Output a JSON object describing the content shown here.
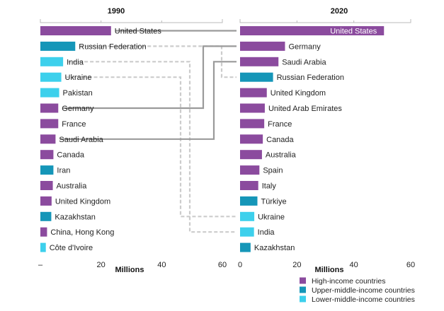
{
  "colors": {
    "High-income countries": "#8b4b9e",
    "Upper-middle-income countries": "#1596b8",
    "Lower-middle-income countries": "#3dd0ec",
    "line_solid": "#9a9a9a",
    "line_dashed": "#cccccc",
    "axis": "#bbbbbb",
    "inside_label": "#ffffff"
  },
  "chart_data": [
    {
      "type": "bar",
      "orientation": "horizontal",
      "title": "1990",
      "xlabel": "Millions",
      "xlim": [
        0,
        60
      ],
      "xticks": [
        "20",
        "40",
        "60"
      ],
      "xaxis_reversed": false,
      "categories": [
        "United States",
        "Russian Federation",
        "India",
        "Ukraine",
        "Pakistan",
        "Germany",
        "France",
        "Saudi Arabia",
        "Canada",
        "Iran",
        "Australia",
        "United Kingdom",
        "Kazakhstan",
        "China, Hong Kong",
        "Côte d'Ivoire"
      ],
      "values": [
        23.3,
        11.5,
        7.5,
        6.9,
        6.2,
        5.9,
        5.9,
        5.0,
        4.3,
        4.3,
        4.1,
        3.7,
        3.6,
        2.2,
        1.8
      ],
      "groups": [
        "High-income countries",
        "Upper-middle-income countries",
        "Lower-middle-income countries",
        "Lower-middle-income countries",
        "Lower-middle-income countries",
        "High-income countries",
        "High-income countries",
        "High-income countries",
        "High-income countries",
        "Upper-middle-income countries",
        "High-income countries",
        "High-income countries",
        "Upper-middle-income countries",
        "High-income countries",
        "Lower-middle-income countries"
      ]
    },
    {
      "type": "bar",
      "orientation": "horizontal",
      "title": "2020",
      "xlabel": "Millions",
      "xlim": [
        0,
        60
      ],
      "xticks": [
        "0",
        "20",
        "40",
        "60"
      ],
      "categories": [
        "United States",
        "Germany",
        "Saudi Arabia",
        "Russian Federation",
        "United Kingdom",
        "United Arab Emirates",
        "France",
        "Canada",
        "Australia",
        "Spain",
        "Italy",
        "Türkiye",
        "Ukraine",
        "India",
        "Kazakhstan"
      ],
      "values": [
        50.6,
        15.8,
        13.5,
        11.6,
        9.4,
        8.7,
        8.5,
        8.0,
        7.7,
        6.8,
        6.4,
        6.1,
        5.0,
        4.9,
        3.7
      ],
      "groups": [
        "High-income countries",
        "High-income countries",
        "High-income countries",
        "Upper-middle-income countries",
        "High-income countries",
        "High-income countries",
        "High-income countries",
        "High-income countries",
        "High-income countries",
        "High-income countries",
        "High-income countries",
        "Upper-middle-income countries",
        "Lower-middle-income countries",
        "Lower-middle-income countries",
        "Upper-middle-income countries"
      ]
    }
  ],
  "connectors": [
    {
      "from": "United States",
      "to": "United States",
      "style": "solid"
    },
    {
      "from": "Russian Federation",
      "to": "Russian Federation",
      "style": "dashed"
    },
    {
      "from": "India",
      "to": "India",
      "style": "dashed"
    },
    {
      "from": "Ukraine",
      "to": "Ukraine",
      "style": "dashed"
    },
    {
      "from": "Germany",
      "to": "Germany",
      "style": "solid"
    },
    {
      "from": "Saudi Arabia",
      "to": "Saudi Arabia",
      "style": "solid"
    }
  ],
  "legend": {
    "placement": "bottom-right",
    "items": [
      {
        "label": "High-income countries",
        "group": "High-income countries"
      },
      {
        "label": "Upper-middle-income countries",
        "group": "Upper-middle-income countries"
      },
      {
        "label": "Lower-middle-income countries",
        "group": "Lower-middle-income countries"
      }
    ]
  }
}
